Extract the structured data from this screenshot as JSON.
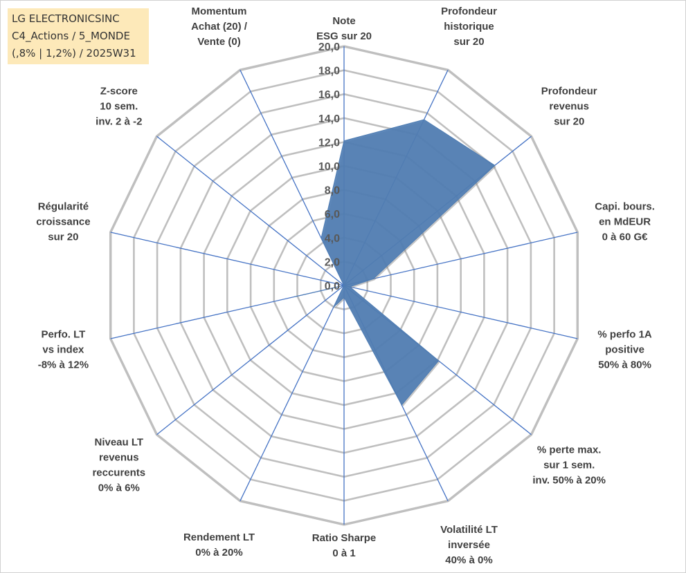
{
  "info_box": {
    "line1": "LG ELECTRONICSINC",
    "line2": "C4_Actions / 5_MONDE",
    "line3": "(,8% | 1,2%) / 2025W31"
  },
  "colors": {
    "grid": "#bfbfbf",
    "spoke": "#4472c4",
    "fill": "#4f7db3",
    "info_bg": "#fde9b9"
  },
  "chart_data": {
    "type": "radar",
    "rlim": [
      0,
      20
    ],
    "tick_values": [
      0,
      2,
      4,
      6,
      8,
      10,
      12,
      14,
      16,
      18,
      20
    ],
    "tick_labels": [
      "0,0",
      "2,0",
      "4,0",
      "6,0",
      "8,0",
      "10,0",
      "12,0",
      "14,0",
      "16,0",
      "18,0",
      "20,0"
    ],
    "grid": true,
    "axes": [
      {
        "label": [
          "Note",
          "ESG sur 20"
        ]
      },
      {
        "label": [
          "Profondeur",
          "historique",
          "sur 20"
        ]
      },
      {
        "label": [
          "Profondeur",
          "revenus",
          "sur 20"
        ]
      },
      {
        "label": [
          "Capi. bours.",
          "en MdEUR",
          "0 à 60 G€"
        ]
      },
      {
        "label": [
          "% perfo 1A",
          "positive",
          "50% à 80%"
        ]
      },
      {
        "label": [
          "% perte max.",
          "sur 1 sem.",
          "inv. 50% à 20%"
        ]
      },
      {
        "label": [
          "Volatilité LT",
          "inversée",
          "40% à 0%"
        ]
      },
      {
        "label": [
          "Ratio Sharpe",
          "0 à 1"
        ]
      },
      {
        "label": [
          "Rendement LT",
          "0% à 20%"
        ]
      },
      {
        "label": [
          "Niveau LT",
          "revenus",
          "reccurents",
          "0% à 6%"
        ]
      },
      {
        "label": [
          "Perfo. LT",
          "vs index",
          "-8% à 12%"
        ]
      },
      {
        "label": [
          "Régularité",
          "croissance",
          "sur 20"
        ]
      },
      {
        "label": [
          "Z-score",
          "10 sem.",
          "inv. 2 à -2"
        ]
      },
      {
        "label": [
          "Momentum",
          "Achat (20) /",
          "Vente (0)"
        ]
      }
    ],
    "series": [
      {
        "values": [
          12.1,
          15.4,
          16.1,
          2.5,
          0.5,
          10.1,
          11.1,
          1.0,
          2.0,
          0.0,
          4.3,
          0.0,
          0.0,
          4.4
        ]
      }
    ]
  }
}
